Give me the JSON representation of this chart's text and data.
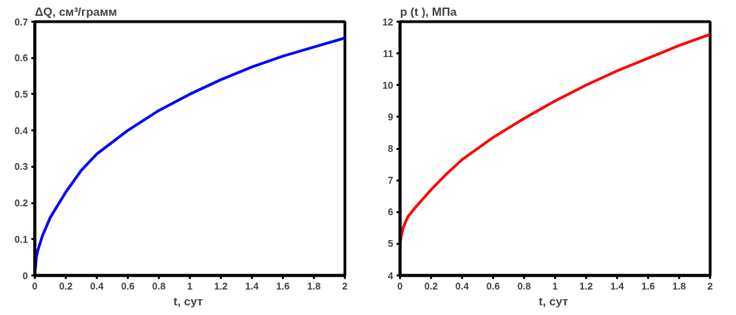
{
  "chart_data": [
    {
      "type": "line",
      "ylabel": "ΔQ, см³/грамм",
      "xlabel": "t,  сут",
      "xlim": [
        0,
        2
      ],
      "ylim": [
        0,
        0.7
      ],
      "xticks": [
        0,
        0.2,
        0.4,
        0.6,
        0.8,
        1,
        1.2,
        1.4,
        1.6,
        1.8,
        2
      ],
      "yticks": [
        0,
        0.1,
        0.2,
        0.3,
        0.4,
        0.5,
        0.6,
        0.7
      ],
      "grid": false,
      "line_style": "solid",
      "x": [
        0,
        0.01,
        0.02,
        0.05,
        0.1,
        0.2,
        0.3,
        0.4,
        0.6,
        0.8,
        1.0,
        1.2,
        1.4,
        1.6,
        1.8,
        2.0
      ],
      "series": [
        {
          "color": "#0000ff",
          "values": [
            0,
            0.05,
            0.07,
            0.11,
            0.16,
            0.23,
            0.29,
            0.335,
            0.4,
            0.455,
            0.5,
            0.54,
            0.575,
            0.605,
            0.63,
            0.655
          ]
        }
      ]
    },
    {
      "type": "line",
      "ylabel": "p (t ),  МПа",
      "xlabel": "t,  сут",
      "xlim": [
        0,
        2
      ],
      "ylim": [
        4,
        12
      ],
      "xticks": [
        0,
        0.2,
        0.4,
        0.6,
        0.8,
        1,
        1.2,
        1.4,
        1.6,
        1.8,
        2
      ],
      "yticks": [
        4,
        5,
        6,
        7,
        8,
        9,
        10,
        11,
        12
      ],
      "grid": false,
      "line_style": "solid",
      "x": [
        0,
        0.01,
        0.02,
        0.05,
        0.1,
        0.2,
        0.3,
        0.4,
        0.6,
        0.8,
        1.0,
        1.2,
        1.4,
        1.6,
        1.8,
        2.0
      ],
      "series": [
        {
          "color": "#ff0000",
          "values": [
            5.0,
            5.3,
            5.5,
            5.85,
            6.15,
            6.7,
            7.2,
            7.65,
            8.35,
            8.95,
            9.5,
            10.0,
            10.45,
            10.85,
            11.25,
            11.6
          ]
        }
      ]
    }
  ]
}
